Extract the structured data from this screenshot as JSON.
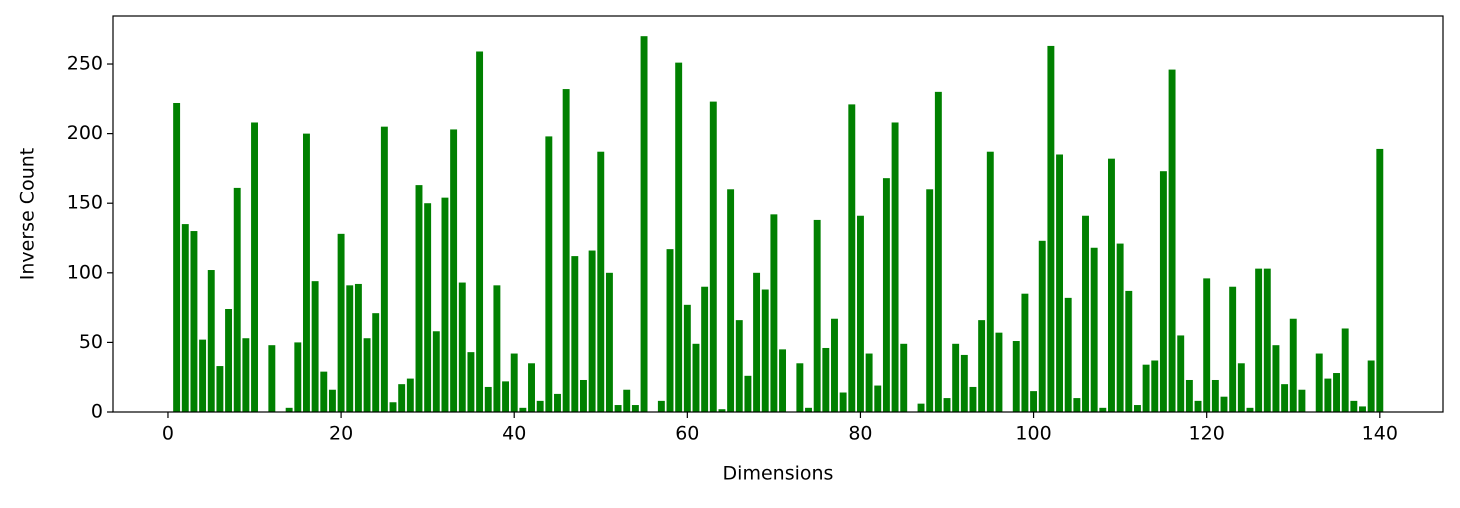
{
  "chart_data": {
    "type": "bar",
    "xlabel": "Dimensions",
    "ylabel": "Inverse Count",
    "color": "#008000",
    "x": [
      0,
      1,
      2,
      3,
      4,
      5,
      6,
      7,
      8,
      9,
      10,
      11,
      12,
      13,
      14,
      15,
      16,
      17,
      18,
      19,
      20,
      21,
      22,
      23,
      24,
      25,
      26,
      27,
      28,
      29,
      30,
      31,
      32,
      33,
      34,
      35,
      36,
      37,
      38,
      39,
      40,
      41,
      42,
      43,
      44,
      45,
      46,
      47,
      48,
      49,
      50,
      51,
      52,
      53,
      54,
      55,
      56,
      57,
      58,
      59,
      60,
      61,
      62,
      63,
      64,
      65,
      66,
      67,
      68,
      69,
      70,
      71,
      72,
      73,
      74,
      75,
      76,
      77,
      78,
      79,
      80,
      81,
      82,
      83,
      84,
      85,
      86,
      87,
      88,
      89,
      90,
      91,
      92,
      93,
      94,
      95,
      96,
      97,
      98,
      99,
      100,
      101,
      102,
      103,
      104,
      105,
      106,
      107,
      108,
      109,
      110,
      111,
      112,
      113,
      114,
      115,
      116,
      117,
      118,
      119,
      120,
      121,
      122,
      123,
      124,
      125,
      126,
      127,
      128,
      129,
      130,
      131,
      132,
      133,
      134,
      135,
      136,
      137,
      138,
      139,
      140
    ],
    "values": [
      0,
      222,
      135,
      130,
      52,
      102,
      33,
      74,
      161,
      53,
      208,
      0,
      48,
      0,
      3,
      50,
      200,
      94,
      29,
      16,
      128,
      91,
      92,
      53,
      71,
      205,
      7,
      20,
      24,
      163,
      150,
      58,
      154,
      203,
      93,
      43,
      259,
      18,
      91,
      22,
      42,
      3,
      35,
      8,
      198,
      13,
      232,
      112,
      23,
      116,
      187,
      100,
      5,
      16,
      5,
      270,
      0,
      8,
      117,
      251,
      77,
      49,
      90,
      223,
      2,
      160,
      66,
      26,
      100,
      88,
      142,
      45,
      0,
      35,
      3,
      138,
      46,
      67,
      14,
      221,
      141,
      42,
      19,
      168,
      208,
      49,
      0,
      6,
      160,
      230,
      10,
      49,
      41,
      18,
      66,
      187,
      57,
      0,
      51,
      85,
      15,
      123,
      263,
      185,
      82,
      10,
      141,
      118,
      3,
      182,
      121,
      87,
      5,
      34,
      37,
      173,
      246,
      55,
      23,
      8,
      96,
      23,
      11,
      90,
      35,
      3,
      103,
      103,
      48,
      20,
      67,
      16,
      0,
      42,
      24,
      28,
      60,
      8,
      4,
      37,
      189
    ],
    "xlim": [
      -6.35,
      147.3
    ],
    "ylim": [
      0,
      284.5
    ],
    "xticks": [
      0,
      20,
      40,
      60,
      80,
      100,
      120,
      140
    ],
    "yticks": [
      0,
      50,
      100,
      150,
      200,
      250
    ]
  }
}
